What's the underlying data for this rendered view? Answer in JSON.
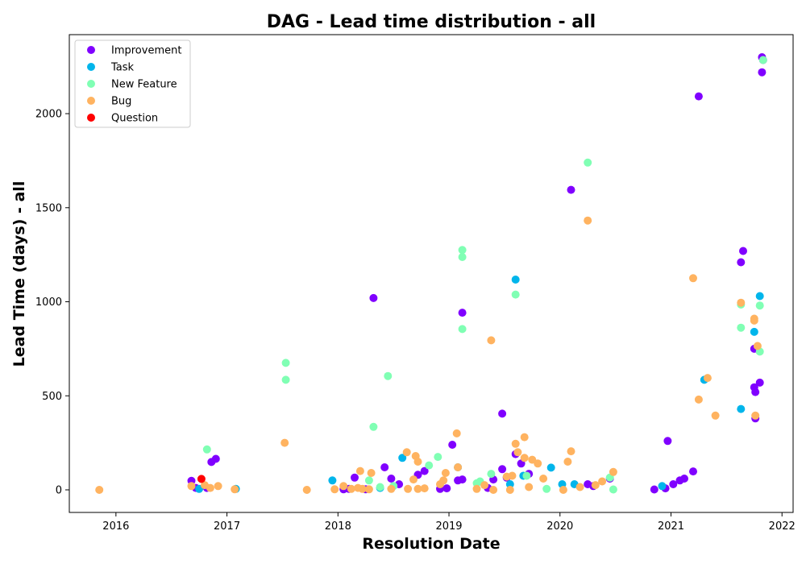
{
  "chart_data": {
    "type": "scatter",
    "title": "DAG - Lead time distribution - all",
    "xlabel": "Resolution Date",
    "ylabel": "Lead Time (days) - all",
    "xlim": [
      2015.58,
      2022.1
    ],
    "ylim": [
      -120,
      2420
    ],
    "x_ticks": [
      2016,
      2017,
      2018,
      2019,
      2020,
      2021,
      2022
    ],
    "y_ticks": [
      0,
      500,
      1000,
      1500,
      2000
    ],
    "grid": false,
    "legend_position": "top-left",
    "series": [
      {
        "name": "Improvement",
        "color": "#8000ff",
        "points": [
          [
            2016.68,
            48
          ],
          [
            2016.72,
            10
          ],
          [
            2016.82,
            10
          ],
          [
            2016.86,
            148
          ],
          [
            2016.9,
            165
          ],
          [
            2018.05,
            3
          ],
          [
            2018.1,
            5
          ],
          [
            2018.15,
            65
          ],
          [
            2018.25,
            3
          ],
          [
            2018.32,
            1020
          ],
          [
            2018.42,
            120
          ],
          [
            2018.48,
            60
          ],
          [
            2018.55,
            30
          ],
          [
            2018.72,
            80
          ],
          [
            2018.78,
            100
          ],
          [
            2018.92,
            5
          ],
          [
            2018.98,
            8
          ],
          [
            2019.03,
            240
          ],
          [
            2019.08,
            50
          ],
          [
            2019.12,
            55
          ],
          [
            2019.12,
            942
          ],
          [
            2019.35,
            10
          ],
          [
            2019.4,
            55
          ],
          [
            2019.48,
            405
          ],
          [
            2019.48,
            110
          ],
          [
            2019.52,
            65
          ],
          [
            2019.6,
            190
          ],
          [
            2019.65,
            140
          ],
          [
            2019.72,
            85
          ],
          [
            2020.1,
            1595
          ],
          [
            2020.25,
            30
          ],
          [
            2020.3,
            20
          ],
          [
            2020.45,
            60
          ],
          [
            2020.85,
            2
          ],
          [
            2020.95,
            8
          ],
          [
            2020.97,
            260
          ],
          [
            2021.02,
            30
          ],
          [
            2021.08,
            50
          ],
          [
            2021.12,
            60
          ],
          [
            2021.2,
            98
          ],
          [
            2021.25,
            2092
          ],
          [
            2021.63,
            1210
          ],
          [
            2021.65,
            1270
          ],
          [
            2021.75,
            750
          ],
          [
            2021.75,
            545
          ],
          [
            2021.76,
            520
          ],
          [
            2021.76,
            380
          ],
          [
            2021.8,
            570
          ],
          [
            2021.82,
            2220
          ],
          [
            2021.82,
            2300
          ],
          [
            2021.83,
            2285
          ]
        ]
      },
      {
        "name": "Task",
        "color": "#00b5eb",
        "points": [
          [
            2016.75,
            5
          ],
          [
            2017.08,
            5
          ],
          [
            2017.95,
            50
          ],
          [
            2018.38,
            10
          ],
          [
            2018.58,
            170
          ],
          [
            2019.08,
            120
          ],
          [
            2019.55,
            30
          ],
          [
            2019.6,
            1118
          ],
          [
            2019.67,
            75
          ],
          [
            2019.92,
            118
          ],
          [
            2020.02,
            30
          ],
          [
            2020.13,
            30
          ],
          [
            2020.92,
            20
          ],
          [
            2021.3,
            585
          ],
          [
            2021.63,
            430
          ],
          [
            2021.75,
            840
          ],
          [
            2021.8,
            1030
          ]
        ]
      },
      {
        "name": "New Feature",
        "color": "#80ffb4",
        "points": [
          [
            2016.82,
            215
          ],
          [
            2017.53,
            675
          ],
          [
            2017.53,
            585
          ],
          [
            2018.28,
            50
          ],
          [
            2018.32,
            335
          ],
          [
            2018.38,
            15
          ],
          [
            2018.45,
            605
          ],
          [
            2018.5,
            20
          ],
          [
            2018.82,
            130
          ],
          [
            2018.9,
            175
          ],
          [
            2019.12,
            1275
          ],
          [
            2019.12,
            1238
          ],
          [
            2019.12,
            855
          ],
          [
            2019.25,
            35
          ],
          [
            2019.28,
            45
          ],
          [
            2019.38,
            85
          ],
          [
            2019.6,
            1038
          ],
          [
            2019.7,
            75
          ],
          [
            2019.88,
            5
          ],
          [
            2020.25,
            1740
          ],
          [
            2020.45,
            65
          ],
          [
            2020.48,
            2
          ],
          [
            2021.63,
            862
          ],
          [
            2021.63,
            985
          ],
          [
            2021.8,
            980
          ],
          [
            2021.8,
            735
          ],
          [
            2021.83,
            2285
          ]
        ]
      },
      {
        "name": "Bug",
        "color": "#ffb360",
        "points": [
          [
            2015.85,
            0
          ],
          [
            2016.68,
            20
          ],
          [
            2016.8,
            25
          ],
          [
            2016.85,
            10
          ],
          [
            2016.92,
            20
          ],
          [
            2017.07,
            3
          ],
          [
            2017.52,
            250
          ],
          [
            2017.72,
            0
          ],
          [
            2017.97,
            3
          ],
          [
            2018.05,
            20
          ],
          [
            2018.12,
            5
          ],
          [
            2018.18,
            10
          ],
          [
            2018.2,
            100
          ],
          [
            2018.22,
            5
          ],
          [
            2018.28,
            3
          ],
          [
            2018.3,
            90
          ],
          [
            2018.48,
            5
          ],
          [
            2018.62,
            200
          ],
          [
            2018.63,
            5
          ],
          [
            2018.68,
            55
          ],
          [
            2018.7,
            180
          ],
          [
            2018.72,
            150
          ],
          [
            2018.72,
            5
          ],
          [
            2018.78,
            8
          ],
          [
            2018.92,
            30
          ],
          [
            2018.95,
            50
          ],
          [
            2018.97,
            90
          ],
          [
            2019.07,
            300
          ],
          [
            2019.08,
            120
          ],
          [
            2019.25,
            5
          ],
          [
            2019.32,
            25
          ],
          [
            2019.38,
            795
          ],
          [
            2019.4,
            0
          ],
          [
            2019.52,
            70
          ],
          [
            2019.55,
            0
          ],
          [
            2019.57,
            75
          ],
          [
            2019.6,
            245
          ],
          [
            2019.62,
            200
          ],
          [
            2019.68,
            280
          ],
          [
            2019.68,
            170
          ],
          [
            2019.72,
            15
          ],
          [
            2019.75,
            160
          ],
          [
            2019.8,
            140
          ],
          [
            2019.85,
            60
          ],
          [
            2020.03,
            0
          ],
          [
            2020.07,
            150
          ],
          [
            2020.1,
            205
          ],
          [
            2020.18,
            15
          ],
          [
            2020.25,
            1432
          ],
          [
            2020.32,
            25
          ],
          [
            2020.38,
            45
          ],
          [
            2020.48,
            95
          ],
          [
            2021.2,
            1125
          ],
          [
            2021.25,
            480
          ],
          [
            2021.33,
            595
          ],
          [
            2021.4,
            395
          ],
          [
            2021.63,
            995
          ],
          [
            2021.75,
            910
          ],
          [
            2021.75,
            900
          ],
          [
            2021.76,
            395
          ],
          [
            2021.78,
            765
          ]
        ]
      },
      {
        "name": "Question",
        "color": "#ff0000",
        "points": [
          [
            2016.77,
            58
          ]
        ]
      }
    ]
  }
}
